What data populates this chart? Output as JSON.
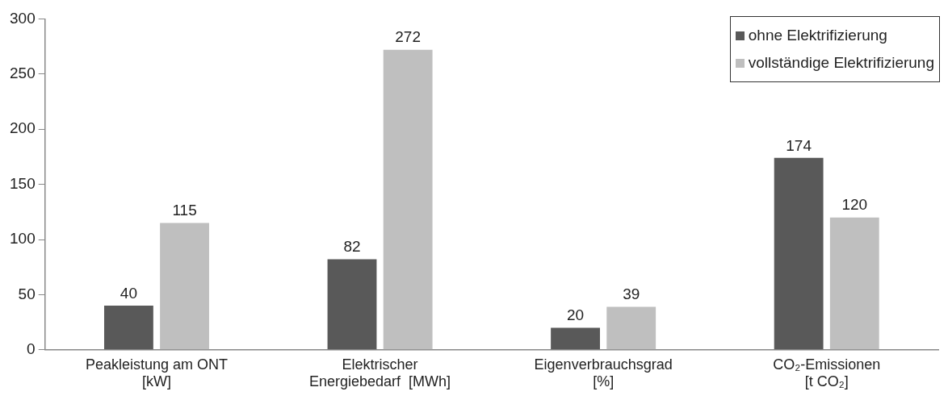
{
  "chart_data": {
    "type": "bar",
    "categories": [
      "Peakleistung am ONT\n[kW]",
      "Elektrischer\nEnergiebedarf  [MWh]",
      "Eigenverbrauchsgrad\n[%]",
      "CO₂-Emissionen\n[t CO₂]"
    ],
    "series": [
      {
        "name": "ohne Elektrifizierung",
        "color": "#595959",
        "values": [
          40,
          82,
          20,
          174
        ]
      },
      {
        "name": "vollständige Elektrifizierung",
        "color": "#bfbfbf",
        "values": [
          115,
          272,
          39,
          120
        ]
      }
    ],
    "ylim": [
      0,
      300
    ],
    "yticks": [
      0,
      50,
      100,
      150,
      200,
      250,
      300
    ],
    "grid": false,
    "legend": "top right",
    "data_labels": true
  }
}
